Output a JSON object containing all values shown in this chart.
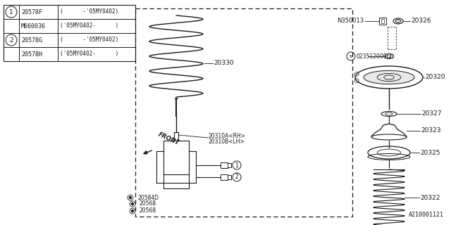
{
  "bg_color": "#ffffff",
  "line_color": "#1a1a1a",
  "fig_width": 6.4,
  "fig_height": 3.2,
  "dpi": 100,
  "diagram_id": "A210001121",
  "table_rows": [
    {
      "circle": "1",
      "col1": "20578F",
      "col2": "(      -'05MY0402)"
    },
    {
      "circle": "",
      "col1": "M660036",
      "col2": "('05MY0402-      )"
    },
    {
      "circle": "2",
      "col1": "20578G",
      "col2": "(      -'05MY0402)"
    },
    {
      "circle": "",
      "col1": "20578H",
      "col2": "('05MY0402-      )"
    }
  ]
}
